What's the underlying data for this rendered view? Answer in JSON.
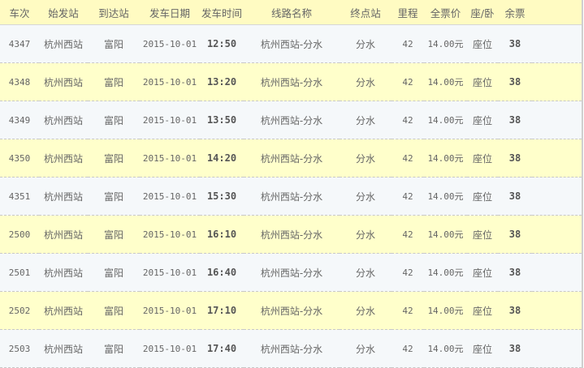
{
  "headers": [
    "车次",
    "始发站",
    "到达站",
    "发车日期",
    "发车时间",
    "线路名称",
    "终点站",
    "里程",
    "全票价",
    "座/卧",
    "余票"
  ],
  "rows": [
    {
      "train": "4347",
      "from": "杭州西站",
      "to": "富阳",
      "date": "2015-10-01",
      "time": "12:50",
      "route": "杭州西站-分水",
      "terminal": "分水",
      "distance": "42",
      "price": "14.00元",
      "seat": "座位",
      "remaining": "38"
    },
    {
      "train": "4348",
      "from": "杭州西站",
      "to": "富阳",
      "date": "2015-10-01",
      "time": "13:20",
      "route": "杭州西站-分水",
      "terminal": "分水",
      "distance": "42",
      "price": "14.00元",
      "seat": "座位",
      "remaining": "38"
    },
    {
      "train": "4349",
      "from": "杭州西站",
      "to": "富阳",
      "date": "2015-10-01",
      "time": "13:50",
      "route": "杭州西站-分水",
      "terminal": "分水",
      "distance": "42",
      "price": "14.00元",
      "seat": "座位",
      "remaining": "38"
    },
    {
      "train": "4350",
      "from": "杭州西站",
      "to": "富阳",
      "date": "2015-10-01",
      "time": "14:20",
      "route": "杭州西站-分水",
      "terminal": "分水",
      "distance": "42",
      "price": "14.00元",
      "seat": "座位",
      "remaining": "38"
    },
    {
      "train": "4351",
      "from": "杭州西站",
      "to": "富阳",
      "date": "2015-10-01",
      "time": "15:30",
      "route": "杭州西站-分水",
      "terminal": "分水",
      "distance": "42",
      "price": "14.00元",
      "seat": "座位",
      "remaining": "38"
    },
    {
      "train": "2500",
      "from": "杭州西站",
      "to": "富阳",
      "date": "2015-10-01",
      "time": "16:10",
      "route": "杭州西站-分水",
      "terminal": "分水",
      "distance": "42",
      "price": "14.00元",
      "seat": "座位",
      "remaining": "38"
    },
    {
      "train": "2501",
      "from": "杭州西站",
      "to": "富阳",
      "date": "2015-10-01",
      "time": "16:40",
      "route": "杭州西站-分水",
      "terminal": "分水",
      "distance": "42",
      "price": "14.00元",
      "seat": "座位",
      "remaining": "38"
    },
    {
      "train": "2502",
      "from": "杭州西站",
      "to": "富阳",
      "date": "2015-10-01",
      "time": "17:10",
      "route": "杭州西站-分水",
      "terminal": "分水",
      "distance": "42",
      "price": "14.00元",
      "seat": "座位",
      "remaining": "38"
    },
    {
      "train": "2503",
      "from": "杭州西站",
      "to": "富阳",
      "date": "2015-10-01",
      "time": "17:40",
      "route": "杭州西站-分水",
      "terminal": "分水",
      "distance": "42",
      "price": "14.00元",
      "seat": "座位",
      "remaining": "38"
    }
  ],
  "colors": {
    "header_bg": "#fffbc2",
    "row_odd": "#f5f8fa",
    "row_even": "#ffffcb",
    "text": "#666666"
  }
}
